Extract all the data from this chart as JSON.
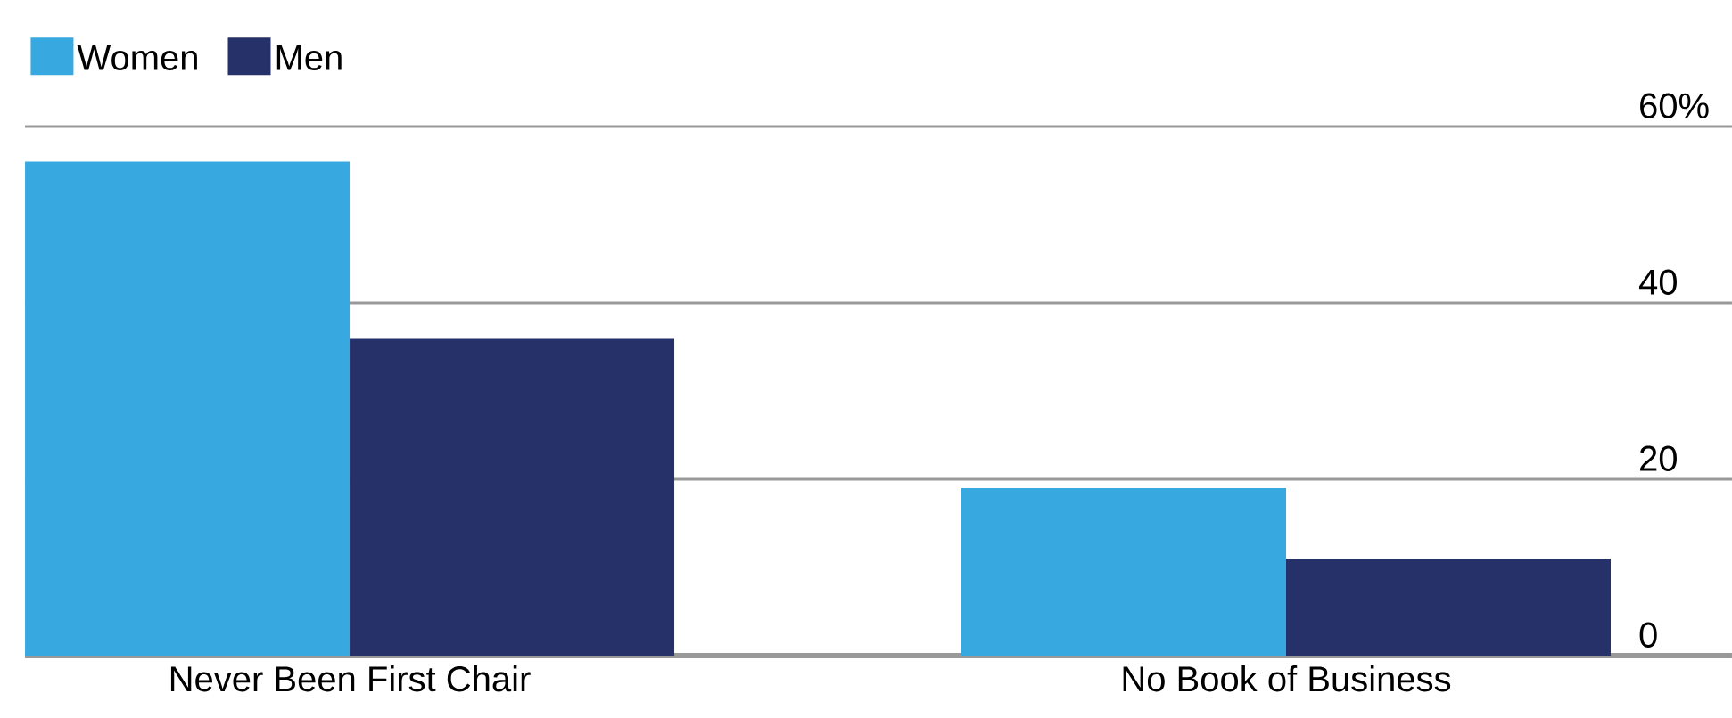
{
  "chart_data": {
    "type": "bar",
    "categories": [
      "Never Been First Chair",
      "No Book of Business"
    ],
    "series": [
      {
        "name": "Women",
        "color": "#37a9e0",
        "values": [
          56,
          19
        ]
      },
      {
        "name": "Men",
        "color": "#263169",
        "values": [
          36,
          11
        ]
      }
    ],
    "ylim": [
      0,
      60
    ],
    "yticks": [
      0,
      20,
      40,
      {
        "value": 60,
        "label": "60%"
      }
    ],
    "grid": "y",
    "legend": "top left"
  }
}
